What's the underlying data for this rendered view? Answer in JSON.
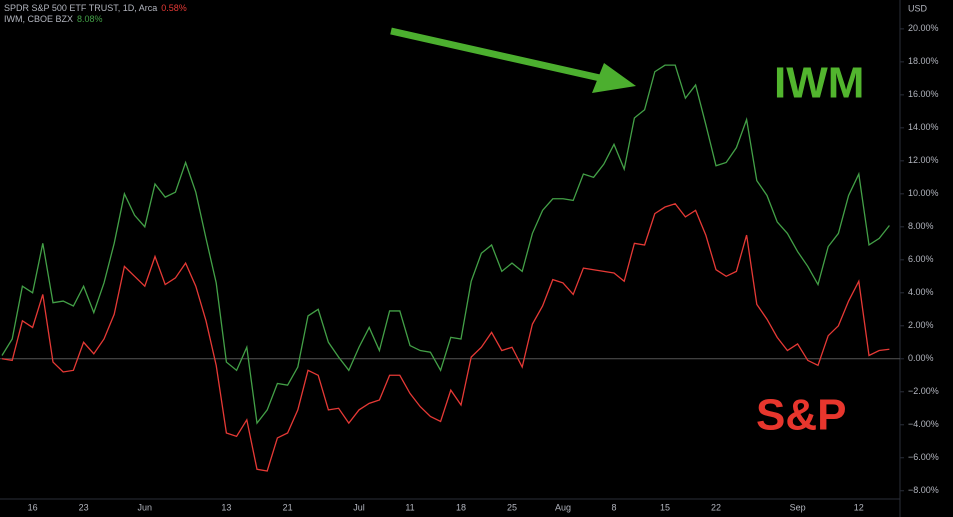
{
  "chart_data": {
    "type": "line",
    "legend": [
      {
        "name": "SPDR S&P 500 ETF TRUST, 1D, Arca",
        "change": "0.58%",
        "series": 1
      },
      {
        "name": "IWM, CBOE BZX",
        "change": "8.08%",
        "series": 0
      }
    ],
    "annotations": [
      "IWM",
      "S&P"
    ],
    "y_axis_label": "USD",
    "categories": [
      null,
      null,
      null,
      "16",
      null,
      null,
      null,
      null,
      "23",
      null,
      null,
      null,
      null,
      null,
      "Jun",
      null,
      null,
      null,
      null,
      null,
      null,
      null,
      "13",
      null,
      null,
      null,
      null,
      null,
      "21",
      null,
      null,
      null,
      null,
      null,
      null,
      "Jul",
      null,
      null,
      null,
      null,
      "11",
      null,
      null,
      null,
      null,
      "18",
      null,
      null,
      null,
      null,
      "25",
      null,
      null,
      null,
      null,
      "Aug",
      null,
      null,
      null,
      null,
      "8",
      null,
      null,
      null,
      null,
      "15",
      null,
      null,
      null,
      null,
      "22",
      null,
      null,
      null,
      null,
      null,
      null,
      null,
      "Sep",
      null,
      null,
      null,
      null,
      null,
      "12",
      null,
      null,
      null
    ],
    "series": [
      {
        "name": "IWM",
        "color": "#43a047",
        "values": [
          0.2,
          1.2,
          4.4,
          4.0,
          7.0,
          3.4,
          3.5,
          3.2,
          4.4,
          2.8,
          4.6,
          7.0,
          10.0,
          8.7,
          8.0,
          10.6,
          9.8,
          10.1,
          11.9,
          10.1,
          7.3,
          4.6,
          -0.2,
          -0.7,
          0.7,
          -3.9,
          -3.1,
          -1.5,
          -1.6,
          -0.5,
          2.6,
          3.0,
          1.0,
          0.1,
          -0.7,
          0.7,
          1.9,
          0.5,
          2.9,
          2.9,
          0.8,
          0.5,
          0.4,
          -0.7,
          1.3,
          1.2,
          4.7,
          6.4,
          6.9,
          5.3,
          5.8,
          5.3,
          7.6,
          9.0,
          9.7,
          9.7,
          9.6,
          11.2,
          11.0,
          11.8,
          13.0,
          11.5,
          14.6,
          15.1,
          17.4,
          17.8,
          17.8,
          15.8,
          16.6,
          14.2,
          11.7,
          11.9,
          12.8,
          14.5,
          10.8,
          9.9,
          8.3,
          7.6,
          6.5,
          5.6,
          4.5,
          6.8,
          7.6,
          9.9,
          11.2,
          6.9,
          7.3,
          8.08
        ]
      },
      {
        "name": "S&P",
        "color": "#e53935",
        "values": [
          0,
          -0.1,
          2.3,
          1.9,
          3.9,
          -0.2,
          -0.8,
          -0.7,
          1.0,
          0.3,
          1.2,
          2.7,
          5.6,
          5.0,
          4.4,
          6.2,
          4.5,
          4.9,
          5.8,
          4.4,
          2.3,
          -0.4,
          -4.5,
          -4.7,
          -3.7,
          -6.7,
          -6.8,
          -4.8,
          -4.5,
          -3.1,
          -0.7,
          -1.0,
          -3.1,
          -3.0,
          -3.9,
          -3.1,
          -2.7,
          -2.5,
          -1.0,
          -1.0,
          -2.1,
          -2.9,
          -3.5,
          -3.8,
          -1.9,
          -2.8,
          0.1,
          0.7,
          1.6,
          0.5,
          0.7,
          -0.5,
          2.1,
          3.2,
          4.8,
          4.6,
          3.9,
          5.5,
          5.4,
          5.3,
          5.2,
          4.7,
          7.0,
          6.9,
          8.8,
          9.2,
          9.4,
          8.6,
          9.0,
          7.5,
          5.4,
          5.0,
          5.3,
          7.5,
          3.3,
          2.4,
          1.3,
          0.5,
          0.9,
          -0.1,
          -0.4,
          1.4,
          2.0,
          3.5,
          4.7,
          0.2,
          0.5,
          0.58
        ]
      }
    ],
    "ylim": [
      -8.5,
      21.75
    ],
    "yticks": [
      {
        "value": 20,
        "label": "20.00%"
      },
      {
        "value": 18,
        "label": "18.00%"
      },
      {
        "value": 16,
        "label": "16.00%"
      },
      {
        "value": 14,
        "label": "14.00%"
      },
      {
        "value": 12,
        "label": "12.00%"
      },
      {
        "value": 10,
        "label": "10.00%"
      },
      {
        "value": 8,
        "label": "8.00%"
      },
      {
        "value": 6,
        "label": "6.00%"
      },
      {
        "value": 4,
        "label": "4.00%"
      },
      {
        "value": 2,
        "label": "2.00%"
      },
      {
        "value": 0,
        "label": "0.00%"
      },
      {
        "value": -2,
        "label": "−2.00%"
      },
      {
        "value": -4,
        "label": "−4.00%"
      },
      {
        "value": -6,
        "label": "−6.00%"
      },
      {
        "value": -8,
        "label": "−8.00%"
      }
    ],
    "zero_line": true
  }
}
